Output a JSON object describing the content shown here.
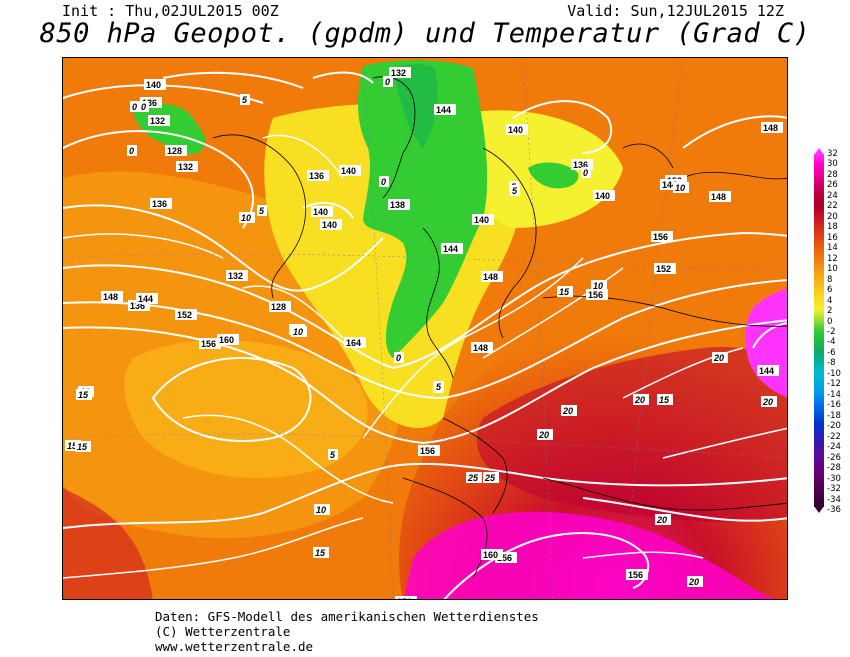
{
  "header": {
    "init": "Init : Thu,02JUL2015 00Z",
    "valid": "Valid: Sun,12JUL2015 12Z",
    "title": "850 hPa Geopot. (gpdm) und Temperatur (Grad C)"
  },
  "footer": {
    "line1": "Daten: GFS-Modell des amerikanischen Wetterdienstes",
    "line2": "(C) Wetterzentrale",
    "line3": "www.wetterzentrale.de"
  },
  "legend": {
    "labels": [
      "32",
      "30",
      "28",
      "26",
      "24",
      "22",
      "20",
      "18",
      "16",
      "14",
      "12",
      "10",
      "8",
      "6",
      "4",
      "2",
      "0",
      "-2",
      "-4",
      "-6",
      "-8",
      "-10",
      "-12",
      "-14",
      "-16",
      "-18",
      "-20",
      "-22",
      "-24",
      "-26",
      "-28",
      "-30",
      "-32",
      "-34",
      "-36"
    ],
    "colors": [
      "#ff33ff",
      "#ff00cc",
      "#ee0099",
      "#cc0066",
      "#bb0033",
      "#aa0022",
      "#c8102a",
      "#d42a1e",
      "#e04414",
      "#e8600e",
      "#f07a0a",
      "#f59410",
      "#f8ad16",
      "#f8c61c",
      "#f8df22",
      "#f5f030",
      "#99dd33",
      "#33cc33",
      "#22bb44",
      "#11aa66",
      "#00b2a0",
      "#00bbcc",
      "#00aadd",
      "#0099ee",
      "#0077ee",
      "#0055dd",
      "#0033cc",
      "#2222bb",
      "#4411aa",
      "#551199",
      "#660088",
      "#660066",
      "#550055",
      "#440044",
      "#330033"
    ]
  },
  "map": {
    "geopotential_labels": [
      "140",
      "136",
      "132",
      "128",
      "132",
      "136",
      "136",
      "140",
      "140",
      "140",
      "136",
      "132",
      "140",
      "144",
      "148",
      "140",
      "140",
      "138",
      "144",
      "128",
      "132",
      "136",
      "144",
      "148",
      "152",
      "156",
      "160",
      "164",
      "148",
      "152",
      "156",
      "156",
      "156",
      "156",
      "160",
      "156",
      "140",
      "148",
      "144",
      "152",
      "144",
      "148",
      "156"
    ],
    "temperature_labels": [
      "0",
      "5",
      "0",
      "0",
      "0",
      "0",
      "5",
      "5",
      "10",
      "10",
      "5",
      "10",
      "10",
      "15",
      "10",
      "5",
      "10",
      "15",
      "15",
      "20",
      "20",
      "20",
      "20",
      "25",
      "20",
      "20",
      "15",
      "20",
      "25",
      "15",
      "15",
      "5",
      "10",
      "5",
      "0",
      "0"
    ]
  }
}
